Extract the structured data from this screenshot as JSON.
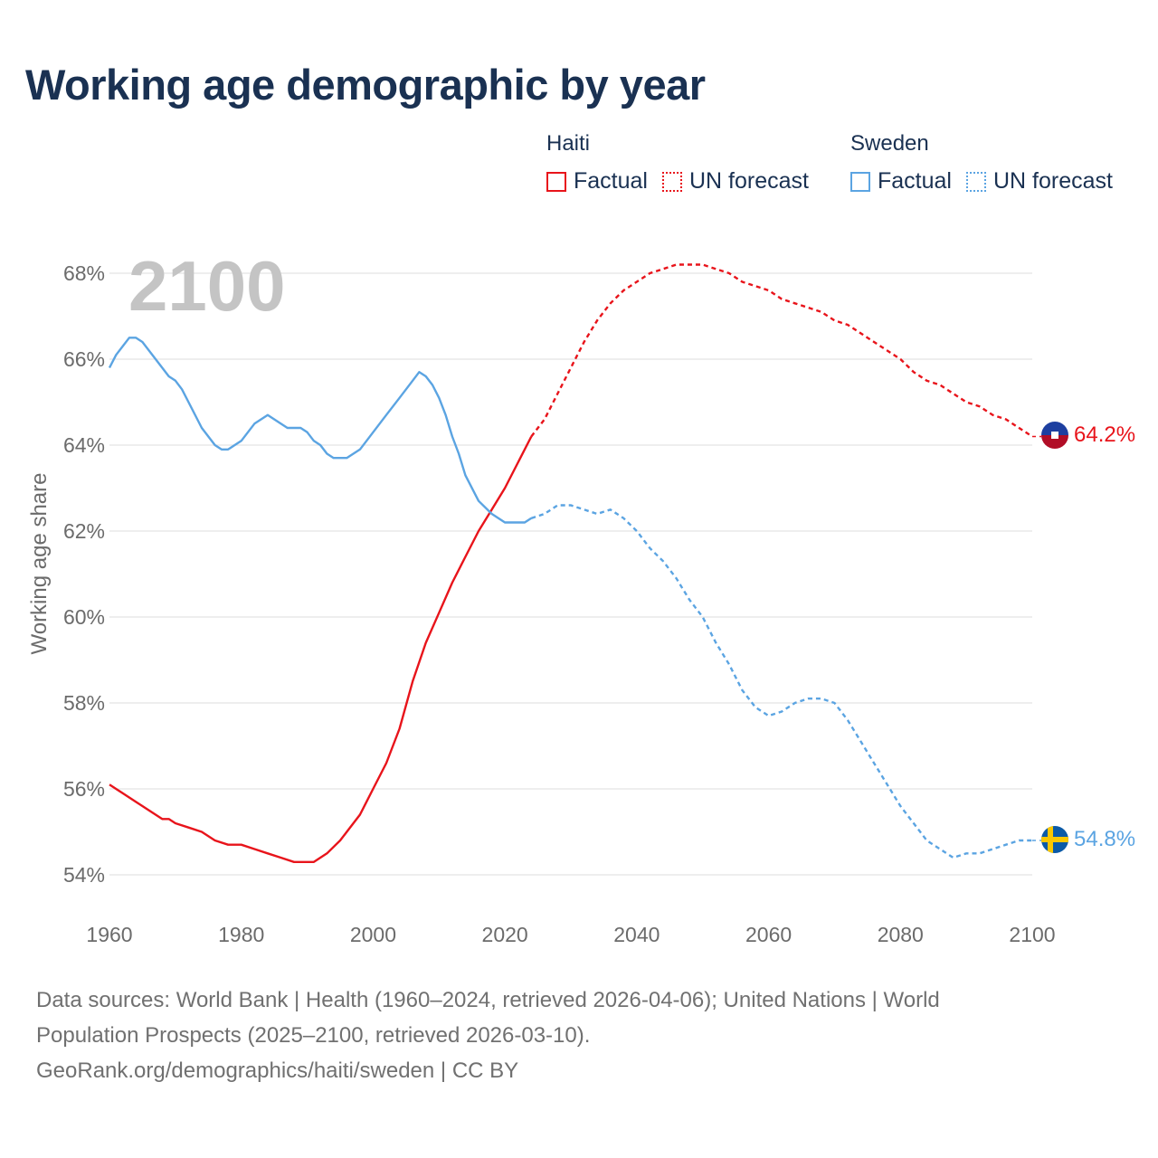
{
  "title": "Working age demographic by year",
  "legend": {
    "haiti": {
      "name": "Haiti",
      "factual": "Factual",
      "forecast": "UN forecast",
      "color": "#e8141b"
    },
    "sweden": {
      "name": "Sweden",
      "factual": "Factual",
      "forecast": "UN forecast",
      "color": "#5ba4e2"
    }
  },
  "sources": {
    "line1": "Data sources: World Bank | Health (1960–2024, retrieved 2026-04-06); United Nations | World",
    "line2": "Population Prospects (2025–2100, retrieved 2026-03-10).",
    "line3": "GeoRank.org/demographics/haiti/sweden | CC BY"
  },
  "chart_data": {
    "type": "line",
    "year_label": "2100",
    "ylabel": "Working age share",
    "xlim": [
      1960,
      2100
    ],
    "ylim": [
      54,
      68
    ],
    "xticks": [
      1960,
      1980,
      2000,
      2020,
      2040,
      2060,
      2080,
      2100
    ],
    "xtick_labels": [
      "1960",
      "1980",
      "2000",
      "2020",
      "2040",
      "2060",
      "2080",
      "2100"
    ],
    "yticks": [
      54,
      56,
      58,
      60,
      62,
      64,
      66,
      68
    ],
    "ytick_labels": [
      "54%",
      "56%",
      "58%",
      "60%",
      "62%",
      "64%",
      "66%",
      "68%"
    ],
    "grid": true,
    "series": [
      {
        "name": "Haiti",
        "color": "#e8141b",
        "end_label": "64.2%",
        "factual": [
          [
            1960,
            56.1
          ],
          [
            1962,
            55.9
          ],
          [
            1964,
            55.7
          ],
          [
            1966,
            55.5
          ],
          [
            1968,
            55.3
          ],
          [
            1969,
            55.3
          ],
          [
            1970,
            55.2
          ],
          [
            1972,
            55.1
          ],
          [
            1974,
            55.0
          ],
          [
            1976,
            54.8
          ],
          [
            1978,
            54.7
          ],
          [
            1980,
            54.7
          ],
          [
            1982,
            54.6
          ],
          [
            1984,
            54.5
          ],
          [
            1986,
            54.4
          ],
          [
            1988,
            54.3
          ],
          [
            1990,
            54.3
          ],
          [
            1991,
            54.3
          ],
          [
            1993,
            54.5
          ],
          [
            1995,
            54.8
          ],
          [
            1998,
            55.4
          ],
          [
            2000,
            56.0
          ],
          [
            2002,
            56.6
          ],
          [
            2004,
            57.4
          ],
          [
            2006,
            58.5
          ],
          [
            2008,
            59.4
          ],
          [
            2010,
            60.1
          ],
          [
            2012,
            60.8
          ],
          [
            2014,
            61.4
          ],
          [
            2016,
            62.0
          ],
          [
            2018,
            62.5
          ],
          [
            2020,
            63.0
          ],
          [
            2022,
            63.6
          ],
          [
            2024,
            64.2
          ]
        ],
        "forecast": [
          [
            2024,
            64.2
          ],
          [
            2026,
            64.6
          ],
          [
            2028,
            65.2
          ],
          [
            2030,
            65.8
          ],
          [
            2032,
            66.4
          ],
          [
            2034,
            66.9
          ],
          [
            2036,
            67.3
          ],
          [
            2038,
            67.6
          ],
          [
            2040,
            67.8
          ],
          [
            2042,
            68.0
          ],
          [
            2044,
            68.1
          ],
          [
            2046,
            68.2
          ],
          [
            2048,
            68.2
          ],
          [
            2050,
            68.2
          ],
          [
            2052,
            68.1
          ],
          [
            2054,
            68.0
          ],
          [
            2056,
            67.8
          ],
          [
            2058,
            67.7
          ],
          [
            2060,
            67.6
          ],
          [
            2062,
            67.4
          ],
          [
            2064,
            67.3
          ],
          [
            2066,
            67.2
          ],
          [
            2068,
            67.1
          ],
          [
            2070,
            66.9
          ],
          [
            2072,
            66.8
          ],
          [
            2074,
            66.6
          ],
          [
            2076,
            66.4
          ],
          [
            2078,
            66.2
          ],
          [
            2080,
            66.0
          ],
          [
            2082,
            65.7
          ],
          [
            2084,
            65.5
          ],
          [
            2086,
            65.4
          ],
          [
            2088,
            65.2
          ],
          [
            2090,
            65.0
          ],
          [
            2092,
            64.9
          ],
          [
            2094,
            64.7
          ],
          [
            2096,
            64.6
          ],
          [
            2098,
            64.4
          ],
          [
            2100,
            64.2
          ]
        ]
      },
      {
        "name": "Sweden",
        "color": "#5ba4e2",
        "end_label": "54.8%",
        "factual": [
          [
            1960,
            65.8
          ],
          [
            1961,
            66.1
          ],
          [
            1963,
            66.5
          ],
          [
            1964,
            66.5
          ],
          [
            1965,
            66.4
          ],
          [
            1967,
            66.0
          ],
          [
            1969,
            65.6
          ],
          [
            1970,
            65.5
          ],
          [
            1971,
            65.3
          ],
          [
            1972,
            65.0
          ],
          [
            1974,
            64.4
          ],
          [
            1976,
            64.0
          ],
          [
            1977,
            63.9
          ],
          [
            1978,
            63.9
          ],
          [
            1980,
            64.1
          ],
          [
            1982,
            64.5
          ],
          [
            1984,
            64.7
          ],
          [
            1986,
            64.5
          ],
          [
            1987,
            64.4
          ],
          [
            1989,
            64.4
          ],
          [
            1990,
            64.3
          ],
          [
            1991,
            64.1
          ],
          [
            1992,
            64.0
          ],
          [
            1993,
            63.8
          ],
          [
            1994,
            63.7
          ],
          [
            1996,
            63.7
          ],
          [
            1998,
            63.9
          ],
          [
            2000,
            64.3
          ],
          [
            2002,
            64.7
          ],
          [
            2004,
            65.1
          ],
          [
            2006,
            65.5
          ],
          [
            2007,
            65.7
          ],
          [
            2008,
            65.6
          ],
          [
            2009,
            65.4
          ],
          [
            2010,
            65.1
          ],
          [
            2011,
            64.7
          ],
          [
            2012,
            64.2
          ],
          [
            2013,
            63.8
          ],
          [
            2014,
            63.3
          ],
          [
            2016,
            62.7
          ],
          [
            2018,
            62.4
          ],
          [
            2020,
            62.2
          ],
          [
            2023,
            62.2
          ],
          [
            2024,
            62.3
          ]
        ],
        "forecast": [
          [
            2024,
            62.3
          ],
          [
            2026,
            62.4
          ],
          [
            2028,
            62.6
          ],
          [
            2030,
            62.6
          ],
          [
            2032,
            62.5
          ],
          [
            2034,
            62.4
          ],
          [
            2036,
            62.5
          ],
          [
            2038,
            62.3
          ],
          [
            2040,
            62.0
          ],
          [
            2042,
            61.6
          ],
          [
            2044,
            61.3
          ],
          [
            2046,
            60.9
          ],
          [
            2048,
            60.4
          ],
          [
            2050,
            60.0
          ],
          [
            2052,
            59.4
          ],
          [
            2054,
            58.9
          ],
          [
            2056,
            58.3
          ],
          [
            2058,
            57.9
          ],
          [
            2060,
            57.7
          ],
          [
            2062,
            57.8
          ],
          [
            2064,
            58.0
          ],
          [
            2066,
            58.1
          ],
          [
            2068,
            58.1
          ],
          [
            2070,
            58.0
          ],
          [
            2072,
            57.6
          ],
          [
            2074,
            57.1
          ],
          [
            2076,
            56.6
          ],
          [
            2078,
            56.1
          ],
          [
            2080,
            55.6
          ],
          [
            2082,
            55.2
          ],
          [
            2084,
            54.8
          ],
          [
            2086,
            54.6
          ],
          [
            2088,
            54.4
          ],
          [
            2090,
            54.5
          ],
          [
            2092,
            54.5
          ],
          [
            2094,
            54.6
          ],
          [
            2096,
            54.7
          ],
          [
            2098,
            54.8
          ],
          [
            2100,
            54.8
          ]
        ]
      }
    ]
  }
}
